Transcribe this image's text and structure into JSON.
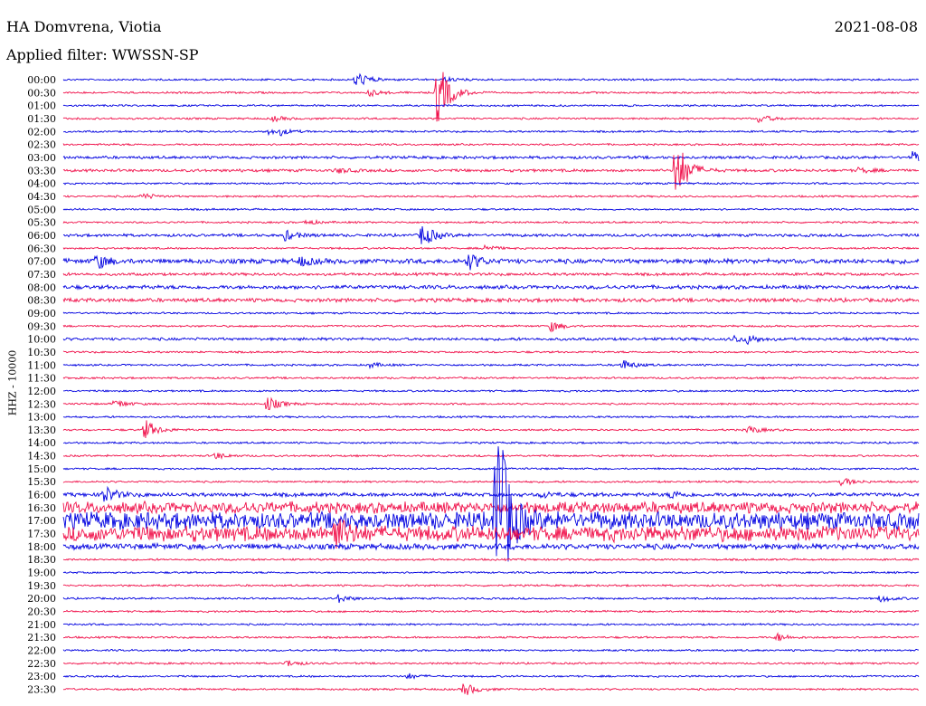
{
  "header": {
    "station": "HA Domvrena, Viotia",
    "filter": "Applied filter: WWSSN-SP",
    "date": "2021-08-08"
  },
  "colors": {
    "blue": "#0000e0",
    "red": "#f0104a"
  },
  "chart_data": {
    "type": "line",
    "title": "HA Domvrena, Viotia",
    "subtitle": "Applied filter: WWSSN-SP",
    "date": "2021-08-08",
    "ylabel": "HHZ - 10000",
    "row_colors": [
      "blue",
      "red"
    ],
    "tick_labels": [
      "00:00",
      "00:30",
      "01:00",
      "01:30",
      "02:00",
      "02:30",
      "03:00",
      "03:30",
      "04:00",
      "04:30",
      "05:00",
      "05:30",
      "06:00",
      "06:30",
      "07:00",
      "07:30",
      "08:00",
      "08:30",
      "09:00",
      "09:30",
      "10:00",
      "10:30",
      "11:00",
      "11:30",
      "12:00",
      "12:30",
      "13:00",
      "13:30",
      "14:00",
      "14:30",
      "15:00",
      "15:30",
      "16:00",
      "16:30",
      "17:00",
      "17:30",
      "18:00",
      "18:30",
      "19:00",
      "19:30",
      "20:00",
      "20:30",
      "21:00",
      "21:30",
      "22:00",
      "22:30",
      "23:00",
      "23:30"
    ],
    "row_noise": [
      1,
      1,
      1,
      1,
      1,
      1,
      1.5,
      1.5,
      1,
      1,
      1,
      1,
      1.5,
      1,
      2.5,
      1.5,
      2,
      2,
      1,
      1,
      1.5,
      1,
      1,
      1,
      1,
      1,
      1,
      1,
      1,
      1,
      1,
      1,
      2,
      6,
      9,
      8,
      3,
      1,
      1,
      1,
      1,
      1,
      1,
      1,
      1,
      1,
      1,
      1
    ],
    "events": [
      {
        "row": 0,
        "x": 0.342,
        "amp": 10
      },
      {
        "row": 0,
        "x": 0.445,
        "amp": 3
      },
      {
        "row": 1,
        "x": 0.357,
        "amp": 4
      },
      {
        "row": 1,
        "x": 0.437,
        "amp": 40
      },
      {
        "row": 3,
        "x": 0.245,
        "amp": 3
      },
      {
        "row": 3,
        "x": 0.813,
        "amp": 5
      },
      {
        "row": 4,
        "x": 0.239,
        "amp": 3
      },
      {
        "row": 4,
        "x": 0.254,
        "amp": 3
      },
      {
        "row": 6,
        "x": 0.992,
        "amp": 6
      },
      {
        "row": 7,
        "x": 0.715,
        "amp": 40
      },
      {
        "row": 7,
        "x": 0.32,
        "amp": 3
      },
      {
        "row": 7,
        "x": 0.93,
        "amp": 3
      },
      {
        "row": 9,
        "x": 0.092,
        "amp": 4
      },
      {
        "row": 11,
        "x": 0.283,
        "amp": 3
      },
      {
        "row": 12,
        "x": 0.259,
        "amp": 6
      },
      {
        "row": 12,
        "x": 0.419,
        "amp": 14
      },
      {
        "row": 13,
        "x": 0.492,
        "amp": 4
      },
      {
        "row": 14,
        "x": 0.038,
        "amp": 9
      },
      {
        "row": 14,
        "x": 0.277,
        "amp": 5
      },
      {
        "row": 14,
        "x": 0.473,
        "amp": 10
      },
      {
        "row": 19,
        "x": 0.57,
        "amp": 6
      },
      {
        "row": 20,
        "x": 0.783,
        "amp": 4
      },
      {
        "row": 20,
        "x": 0.8,
        "amp": 4
      },
      {
        "row": 22,
        "x": 0.358,
        "amp": 3
      },
      {
        "row": 22,
        "x": 0.653,
        "amp": 6
      },
      {
        "row": 25,
        "x": 0.06,
        "amp": 5
      },
      {
        "row": 25,
        "x": 0.238,
        "amp": 9
      },
      {
        "row": 27,
        "x": 0.095,
        "amp": 12
      },
      {
        "row": 27,
        "x": 0.8,
        "amp": 5
      },
      {
        "row": 29,
        "x": 0.177,
        "amp": 4
      },
      {
        "row": 31,
        "x": 0.91,
        "amp": 5
      },
      {
        "row": 32,
        "x": 0.045,
        "amp": 12
      },
      {
        "row": 32,
        "x": 0.56,
        "amp": 4
      },
      {
        "row": 32,
        "x": 0.71,
        "amp": 4
      },
      {
        "row": 34,
        "x": 0.505,
        "amp": 150
      },
      {
        "row": 35,
        "x": 0.317,
        "amp": 20
      },
      {
        "row": 40,
        "x": 0.32,
        "amp": 5
      },
      {
        "row": 40,
        "x": 0.955,
        "amp": 4
      },
      {
        "row": 43,
        "x": 0.833,
        "amp": 5
      },
      {
        "row": 45,
        "x": 0.26,
        "amp": 4
      },
      {
        "row": 46,
        "x": 0.402,
        "amp": 3
      },
      {
        "row": 47,
        "x": 0.468,
        "amp": 8
      }
    ]
  }
}
